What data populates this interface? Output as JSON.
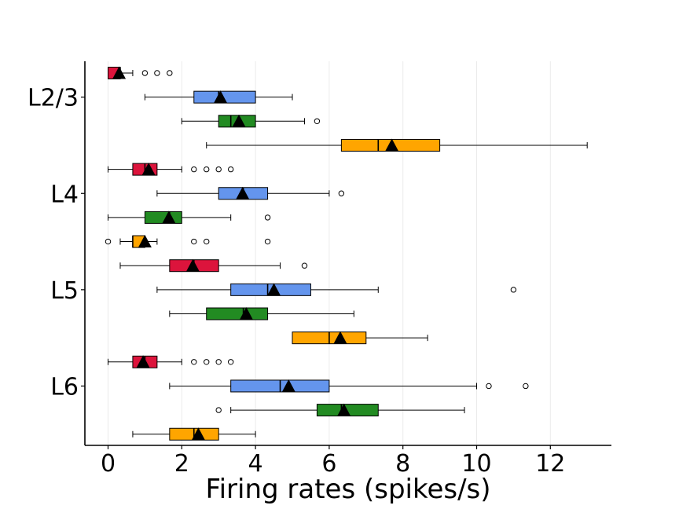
{
  "chart_data": {
    "type": "box",
    "orientation": "horizontal",
    "xlabel": "Firing rates (spikes/s)",
    "xlim": [
      -0.6,
      13.6
    ],
    "xticks": [
      0,
      2,
      4,
      6,
      8,
      10,
      12
    ],
    "xgrid": true,
    "categories": [
      "L2/3",
      "L4",
      "L5",
      "L6"
    ],
    "series_colors": [
      "#dc143c",
      "#6495ed",
      "#228b22",
      "#ffa500"
    ],
    "mean_marker": "black triangle",
    "boxes": [
      {
        "group": "L2/3",
        "color": "#dc143c",
        "whislo": 0,
        "q1": 0,
        "med": 0.33,
        "q3": 0.33,
        "whishi": 0.67,
        "mean": 0.3,
        "fliers": [
          1.0,
          1.33,
          1.67
        ]
      },
      {
        "group": "L2/3",
        "color": "#6495ed",
        "whislo": 1.0,
        "q1": 2.33,
        "med": 3.0,
        "q3": 4.0,
        "whishi": 5.0,
        "mean": 3.05,
        "fliers": []
      },
      {
        "group": "L2/3",
        "color": "#228b22",
        "whislo": 2.0,
        "q1": 3.0,
        "med": 3.33,
        "q3": 4.0,
        "whishi": 5.33,
        "mean": 3.55,
        "fliers": [
          5.67
        ]
      },
      {
        "group": "L2/3",
        "color": "#ffa500",
        "whislo": 2.67,
        "q1": 6.33,
        "med": 7.33,
        "q3": 9.0,
        "whishi": 13.0,
        "mean": 7.7,
        "fliers": []
      },
      {
        "group": "L4",
        "color": "#dc143c",
        "whislo": 0,
        "q1": 0.67,
        "med": 1.0,
        "q3": 1.33,
        "whishi": 2.0,
        "mean": 1.1,
        "fliers": [
          2.33,
          2.67,
          3.0,
          3.33
        ]
      },
      {
        "group": "L4",
        "color": "#6495ed",
        "whislo": 1.33,
        "q1": 3.0,
        "med": 3.67,
        "q3": 4.33,
        "whishi": 6.0,
        "mean": 3.65,
        "fliers": [
          6.33
        ]
      },
      {
        "group": "L4",
        "color": "#228b22",
        "whislo": 0,
        "q1": 1.0,
        "med": 1.67,
        "q3": 2.0,
        "whishi": 3.33,
        "mean": 1.65,
        "fliers": [
          4.33
        ]
      },
      {
        "group": "L4",
        "color": "#ffa500",
        "whislo": 0.33,
        "q1": 0.67,
        "med": 0.67,
        "q3": 1.0,
        "whishi": 1.33,
        "mean": 1.0,
        "fliers": [
          0,
          2.33,
          2.67,
          4.33
        ]
      },
      {
        "group": "L5",
        "color": "#dc143c",
        "whislo": 0.33,
        "q1": 1.67,
        "med": 2.33,
        "q3": 3.0,
        "whishi": 4.67,
        "mean": 2.3,
        "fliers": [
          5.33
        ]
      },
      {
        "group": "L5",
        "color": "#6495ed",
        "whislo": 1.33,
        "q1": 3.33,
        "med": 4.33,
        "q3": 5.5,
        "whishi": 7.33,
        "mean": 4.5,
        "fliers": [
          11.0
        ]
      },
      {
        "group": "L5",
        "color": "#228b22",
        "whislo": 1.67,
        "q1": 2.67,
        "med": 3.67,
        "q3": 4.33,
        "whishi": 6.67,
        "mean": 3.75,
        "fliers": []
      },
      {
        "group": "L5",
        "color": "#ffa500",
        "whislo": 5.0,
        "q1": 5.0,
        "med": 6.0,
        "q3": 7.0,
        "whishi": 8.67,
        "mean": 6.3,
        "fliers": []
      },
      {
        "group": "L6",
        "color": "#dc143c",
        "whislo": 0,
        "q1": 0.67,
        "med": 1.0,
        "q3": 1.33,
        "whishi": 2.0,
        "mean": 0.95,
        "fliers": [
          2.33,
          2.67,
          3.0,
          3.33
        ]
      },
      {
        "group": "L6",
        "color": "#6495ed",
        "whislo": 1.67,
        "q1": 3.33,
        "med": 4.67,
        "q3": 6.0,
        "whishi": 10.0,
        "mean": 4.9,
        "fliers": [
          10.33,
          11.33
        ]
      },
      {
        "group": "L6",
        "color": "#228b22",
        "whislo": 3.33,
        "q1": 5.67,
        "med": 6.33,
        "q3": 7.33,
        "whishi": 9.67,
        "mean": 6.4,
        "fliers": [
          3.0
        ]
      },
      {
        "group": "L6",
        "color": "#ffa500",
        "whislo": 0.67,
        "q1": 1.67,
        "med": 2.33,
        "q3": 3.0,
        "whishi": 4.0,
        "mean": 2.45,
        "fliers": []
      }
    ]
  }
}
